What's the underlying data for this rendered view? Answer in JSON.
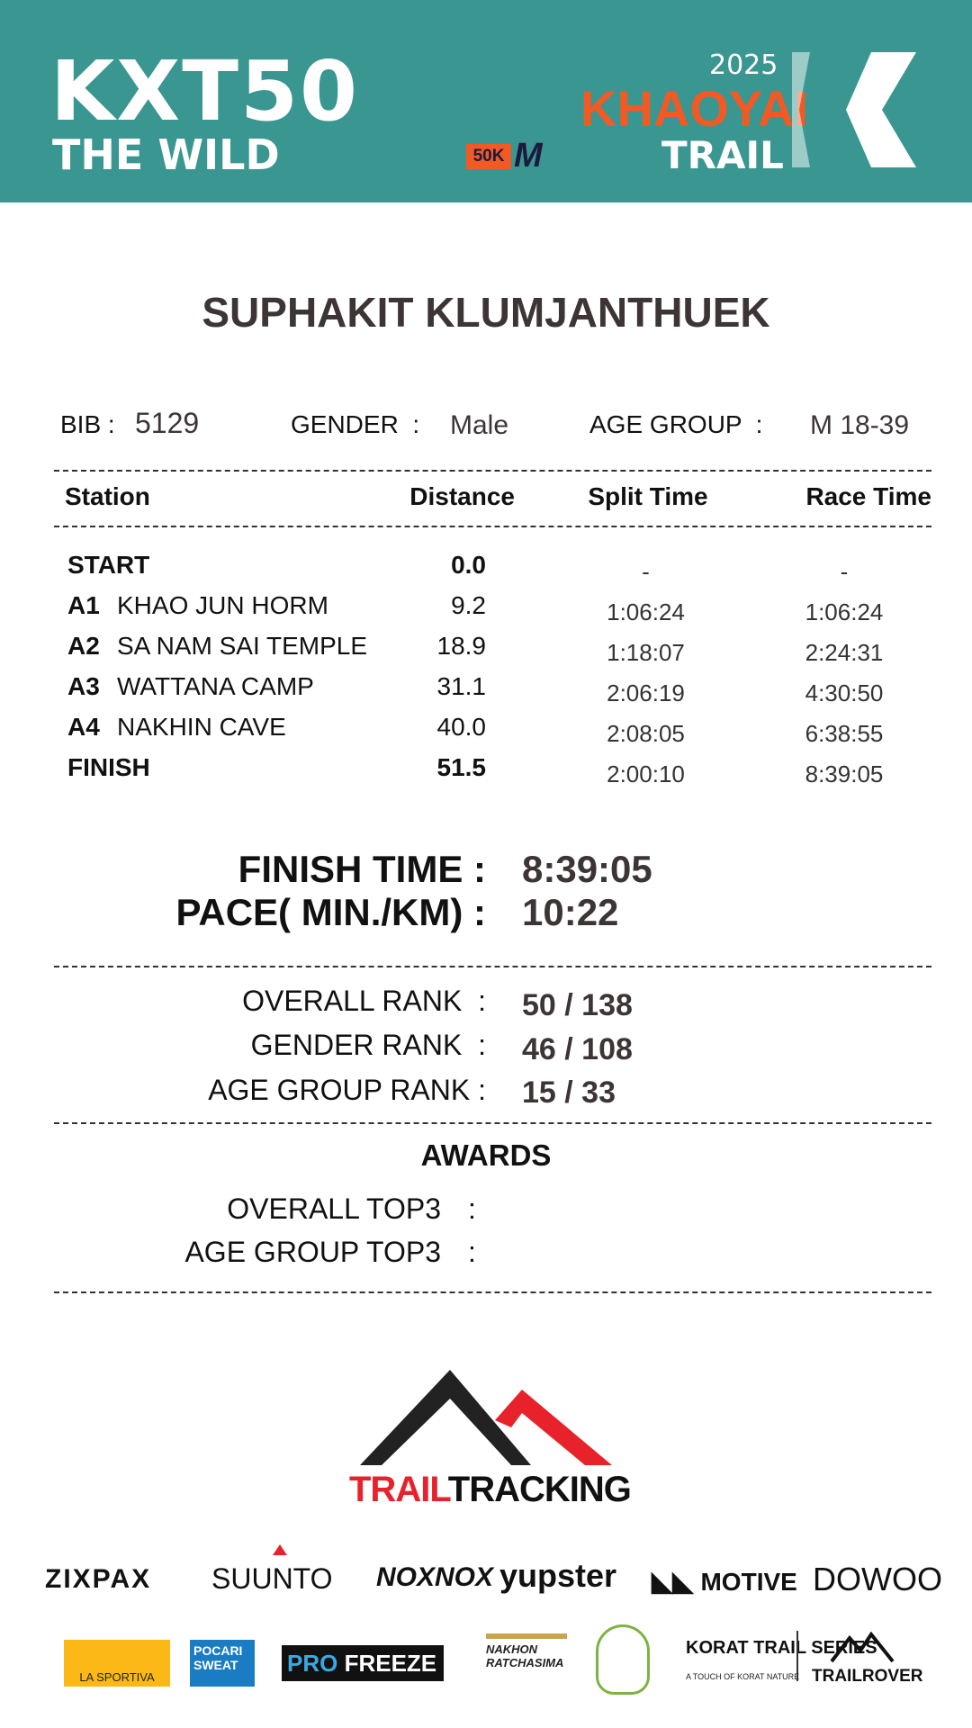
{
  "header": {
    "event_logo": "KXT50",
    "event_sub": "THE WILD",
    "distance_badge": "50K",
    "distance_badge_letter": "M",
    "year": "2025",
    "brand": "KHAOYAI",
    "brand_sub": "TRAIL",
    "teal": "#3a9690",
    "orange": "#f15a24"
  },
  "runner": {
    "name": "SUPHAKIT KLUMJANTHUEK"
  },
  "info": {
    "bib_label": "BIB :",
    "bib": "5129",
    "gender_label": "GENDER  :",
    "gender": "Male",
    "age_label": "AGE GROUP  :",
    "age": "M 18-39"
  },
  "table": {
    "headers": [
      "Station",
      "Distance",
      "Split Time",
      "Race Time"
    ],
    "rows": [
      {
        "code": "START",
        "name": "",
        "distance": "0.0",
        "split": "-",
        "race": "-"
      },
      {
        "code": "A1",
        "name": "KHAO JUN HORM",
        "distance": "9.2",
        "split": "1:06:24",
        "race": "1:06:24"
      },
      {
        "code": "A2",
        "name": "SA NAM SAI TEMPLE",
        "distance": "18.9",
        "split": "1:18:07",
        "race": "2:24:31"
      },
      {
        "code": "A3",
        "name": "WATTANA CAMP",
        "distance": "31.1",
        "split": "2:06:19",
        "race": "4:30:50"
      },
      {
        "code": "A4",
        "name": "NAKHIN CAVE",
        "distance": "40.0",
        "split": "2:08:05",
        "race": "6:38:55"
      },
      {
        "code": "FINISH",
        "name": "",
        "distance": "51.5",
        "split": "2:00:10",
        "race": "8:39:05"
      }
    ]
  },
  "result": {
    "finish_label": "FINISH TIME :",
    "finish": "8:39:05",
    "pace_label": "PACE( MIN./KM) :",
    "pace": "10:22"
  },
  "ranks": [
    {
      "label": "OVERALL RANK  :",
      "value": "50 / 138"
    },
    {
      "label": "GENDER RANK  :",
      "value": "46 / 108"
    },
    {
      "label": "AGE GROUP RANK :",
      "value": "15 / 33"
    }
  ],
  "awards": {
    "title": "AWARDS",
    "items": [
      {
        "label": "OVERALL TOP3",
        "colon": ":"
      },
      {
        "label": "AGE GROUP TOP3",
        "colon": ":"
      }
    ]
  },
  "footer": {
    "logo_a": "TRAIL",
    "logo_b": "TRACKING",
    "sponsors_row1": [
      "ZIXPAX",
      "SUUNTO",
      "NOXNOX",
      "yupster",
      "MOTIVE",
      "DOWOO"
    ],
    "sponsors_row2": [
      "LA SPORTIVA",
      "POCARI SWEAT",
      "PRO",
      "FREEZE",
      "NAKHON RATCHASIMA",
      "KORAT TRAIL SERIES",
      "A TOUCH OF KORAT NATURE",
      "TRAILROVER"
    ]
  }
}
